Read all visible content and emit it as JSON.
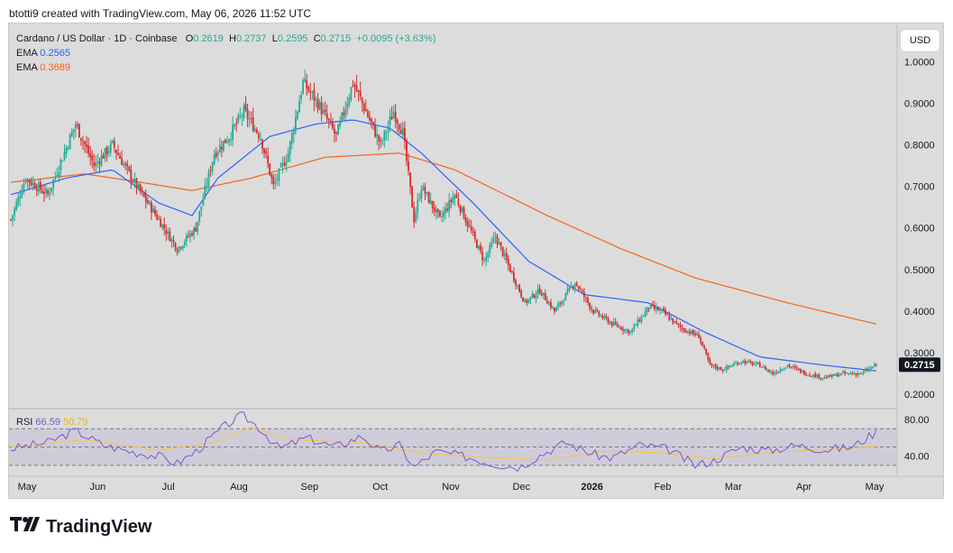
{
  "header": {
    "credit": "btotti9 created with TradingView.com, May 06, 2026 11:52 UTC"
  },
  "legend": {
    "symbol": "Cardano / US Dollar · 1D · Coinbase",
    "open_label": "O",
    "open": "0.2619",
    "high_label": "H",
    "high": "0.2737",
    "low_label": "L",
    "low": "0.2595",
    "close_label": "C",
    "close": "0.2715",
    "change": "+0.0095 (+3.63%)",
    "ema_fast_label": "EMA",
    "ema_fast_value": "0.2565",
    "ema_slow_label": "EMA",
    "ema_slow_value": "0.3689",
    "rsi_label": "RSI",
    "rsi_value": "66.59",
    "rsi_ma_value": "50.79"
  },
  "currency_button": "USD",
  "footer": {
    "brand": "TradingView"
  },
  "colors": {
    "up": "#22ab94",
    "down": "#d42e2e",
    "ema_fast": "#2962ff",
    "ema_slow": "#f7631b",
    "rsi": "#7e57c2",
    "rsi_ma": "#f5c842",
    "rsi_band": "#c7c2d8",
    "panel": "#dcdcdc"
  },
  "chart_data": {
    "type": "candlestick",
    "title": "Cardano / US Dollar · 1D · Coinbase",
    "x_ticks": [
      "May",
      "Jun",
      "Jul",
      "Aug",
      "Sep",
      "Oct",
      "Nov",
      "Dec",
      "2026",
      "Feb",
      "Mar",
      "Apr",
      "May"
    ],
    "y_ticks": [
      "1.0000",
      "0.9000",
      "0.8000",
      "0.7000",
      "0.6000",
      "0.5000",
      "0.4000",
      "0.3000",
      "0.2000"
    ],
    "ylim": [
      0.17,
      1.07
    ],
    "last_price": "0.2715",
    "close_path": [
      [
        0,
        0.62
      ],
      [
        8,
        0.72
      ],
      [
        20,
        0.68
      ],
      [
        35,
        0.85
      ],
      [
        45,
        0.75
      ],
      [
        55,
        0.8
      ],
      [
        68,
        0.7
      ],
      [
        80,
        0.62
      ],
      [
        90,
        0.55
      ],
      [
        100,
        0.6
      ],
      [
        110,
        0.78
      ],
      [
        118,
        0.82
      ],
      [
        126,
        0.88
      ],
      [
        135,
        0.82
      ],
      [
        142,
        0.7
      ],
      [
        150,
        0.78
      ],
      [
        158,
        0.95
      ],
      [
        166,
        0.9
      ],
      [
        176,
        0.82
      ],
      [
        185,
        0.95
      ],
      [
        192,
        0.88
      ],
      [
        200,
        0.8
      ],
      [
        207,
        0.88
      ],
      [
        212,
        0.83
      ],
      [
        218,
        0.62
      ],
      [
        222,
        0.7
      ],
      [
        232,
        0.62
      ],
      [
        240,
        0.68
      ],
      [
        248,
        0.6
      ],
      [
        256,
        0.52
      ],
      [
        262,
        0.58
      ],
      [
        270,
        0.5
      ],
      [
        278,
        0.42
      ],
      [
        286,
        0.45
      ],
      [
        294,
        0.4
      ],
      [
        305,
        0.47
      ],
      [
        315,
        0.4
      ],
      [
        325,
        0.37
      ],
      [
        335,
        0.35
      ],
      [
        345,
        0.41
      ],
      [
        352,
        0.4
      ],
      [
        362,
        0.36
      ],
      [
        372,
        0.34
      ],
      [
        378,
        0.27
      ],
      [
        385,
        0.26
      ],
      [
        395,
        0.28
      ],
      [
        405,
        0.27
      ],
      [
        412,
        0.25
      ],
      [
        420,
        0.27
      ],
      [
        430,
        0.25
      ],
      [
        440,
        0.24
      ],
      [
        450,
        0.25
      ],
      [
        460,
        0.25
      ],
      [
        468,
        0.2715
      ]
    ],
    "ema_fast_path": [
      [
        0,
        0.68
      ],
      [
        30,
        0.72
      ],
      [
        55,
        0.74
      ],
      [
        80,
        0.66
      ],
      [
        98,
        0.63
      ],
      [
        112,
        0.72
      ],
      [
        140,
        0.82
      ],
      [
        165,
        0.85
      ],
      [
        185,
        0.86
      ],
      [
        205,
        0.84
      ],
      [
        222,
        0.78
      ],
      [
        250,
        0.66
      ],
      [
        280,
        0.52
      ],
      [
        310,
        0.44
      ],
      [
        345,
        0.42
      ],
      [
        375,
        0.35
      ],
      [
        405,
        0.29
      ],
      [
        440,
        0.27
      ],
      [
        468,
        0.2565
      ]
    ],
    "ema_slow_path": [
      [
        0,
        0.71
      ],
      [
        40,
        0.73
      ],
      [
        70,
        0.71
      ],
      [
        98,
        0.69
      ],
      [
        130,
        0.72
      ],
      [
        170,
        0.77
      ],
      [
        210,
        0.78
      ],
      [
        240,
        0.74
      ],
      [
        290,
        0.63
      ],
      [
        330,
        0.55
      ],
      [
        370,
        0.48
      ],
      [
        420,
        0.42
      ],
      [
        468,
        0.3689
      ]
    ],
    "rsi": {
      "levels": [
        70,
        50,
        30
      ],
      "tick_labels": [
        "80.00",
        "40.00"
      ],
      "ylim": [
        20,
        86
      ],
      "rsi_path": [
        [
          0,
          48
        ],
        [
          20,
          55
        ],
        [
          35,
          68
        ],
        [
          50,
          52
        ],
        [
          65,
          45
        ],
        [
          80,
          40
        ],
        [
          90,
          32
        ],
        [
          100,
          45
        ],
        [
          115,
          72
        ],
        [
          125,
          85
        ],
        [
          135,
          70
        ],
        [
          145,
          48
        ],
        [
          160,
          60
        ],
        [
          175,
          50
        ],
        [
          190,
          62
        ],
        [
          200,
          45
        ],
        [
          210,
          52
        ],
        [
          218,
          28
        ],
        [
          230,
          45
        ],
        [
          245,
          40
        ],
        [
          260,
          32
        ],
        [
          275,
          28
        ],
        [
          285,
          40
        ],
        [
          300,
          55
        ],
        [
          315,
          42
        ],
        [
          325,
          38
        ],
        [
          340,
          52
        ],
        [
          355,
          48
        ],
        [
          370,
          30
        ],
        [
          380,
          35
        ],
        [
          395,
          50
        ],
        [
          410,
          46
        ],
        [
          425,
          52
        ],
        [
          440,
          47
        ],
        [
          455,
          50
        ],
        [
          468,
          66.59
        ]
      ],
      "ma_path": [
        [
          0,
          50
        ],
        [
          40,
          58
        ],
        [
          80,
          47
        ],
        [
          110,
          55
        ],
        [
          130,
          72
        ],
        [
          150,
          58
        ],
        [
          190,
          55
        ],
        [
          220,
          44
        ],
        [
          260,
          38
        ],
        [
          290,
          36
        ],
        [
          320,
          45
        ],
        [
          350,
          44
        ],
        [
          380,
          37
        ],
        [
          410,
          44
        ],
        [
          440,
          47
        ],
        [
          468,
          50.79
        ]
      ]
    }
  }
}
